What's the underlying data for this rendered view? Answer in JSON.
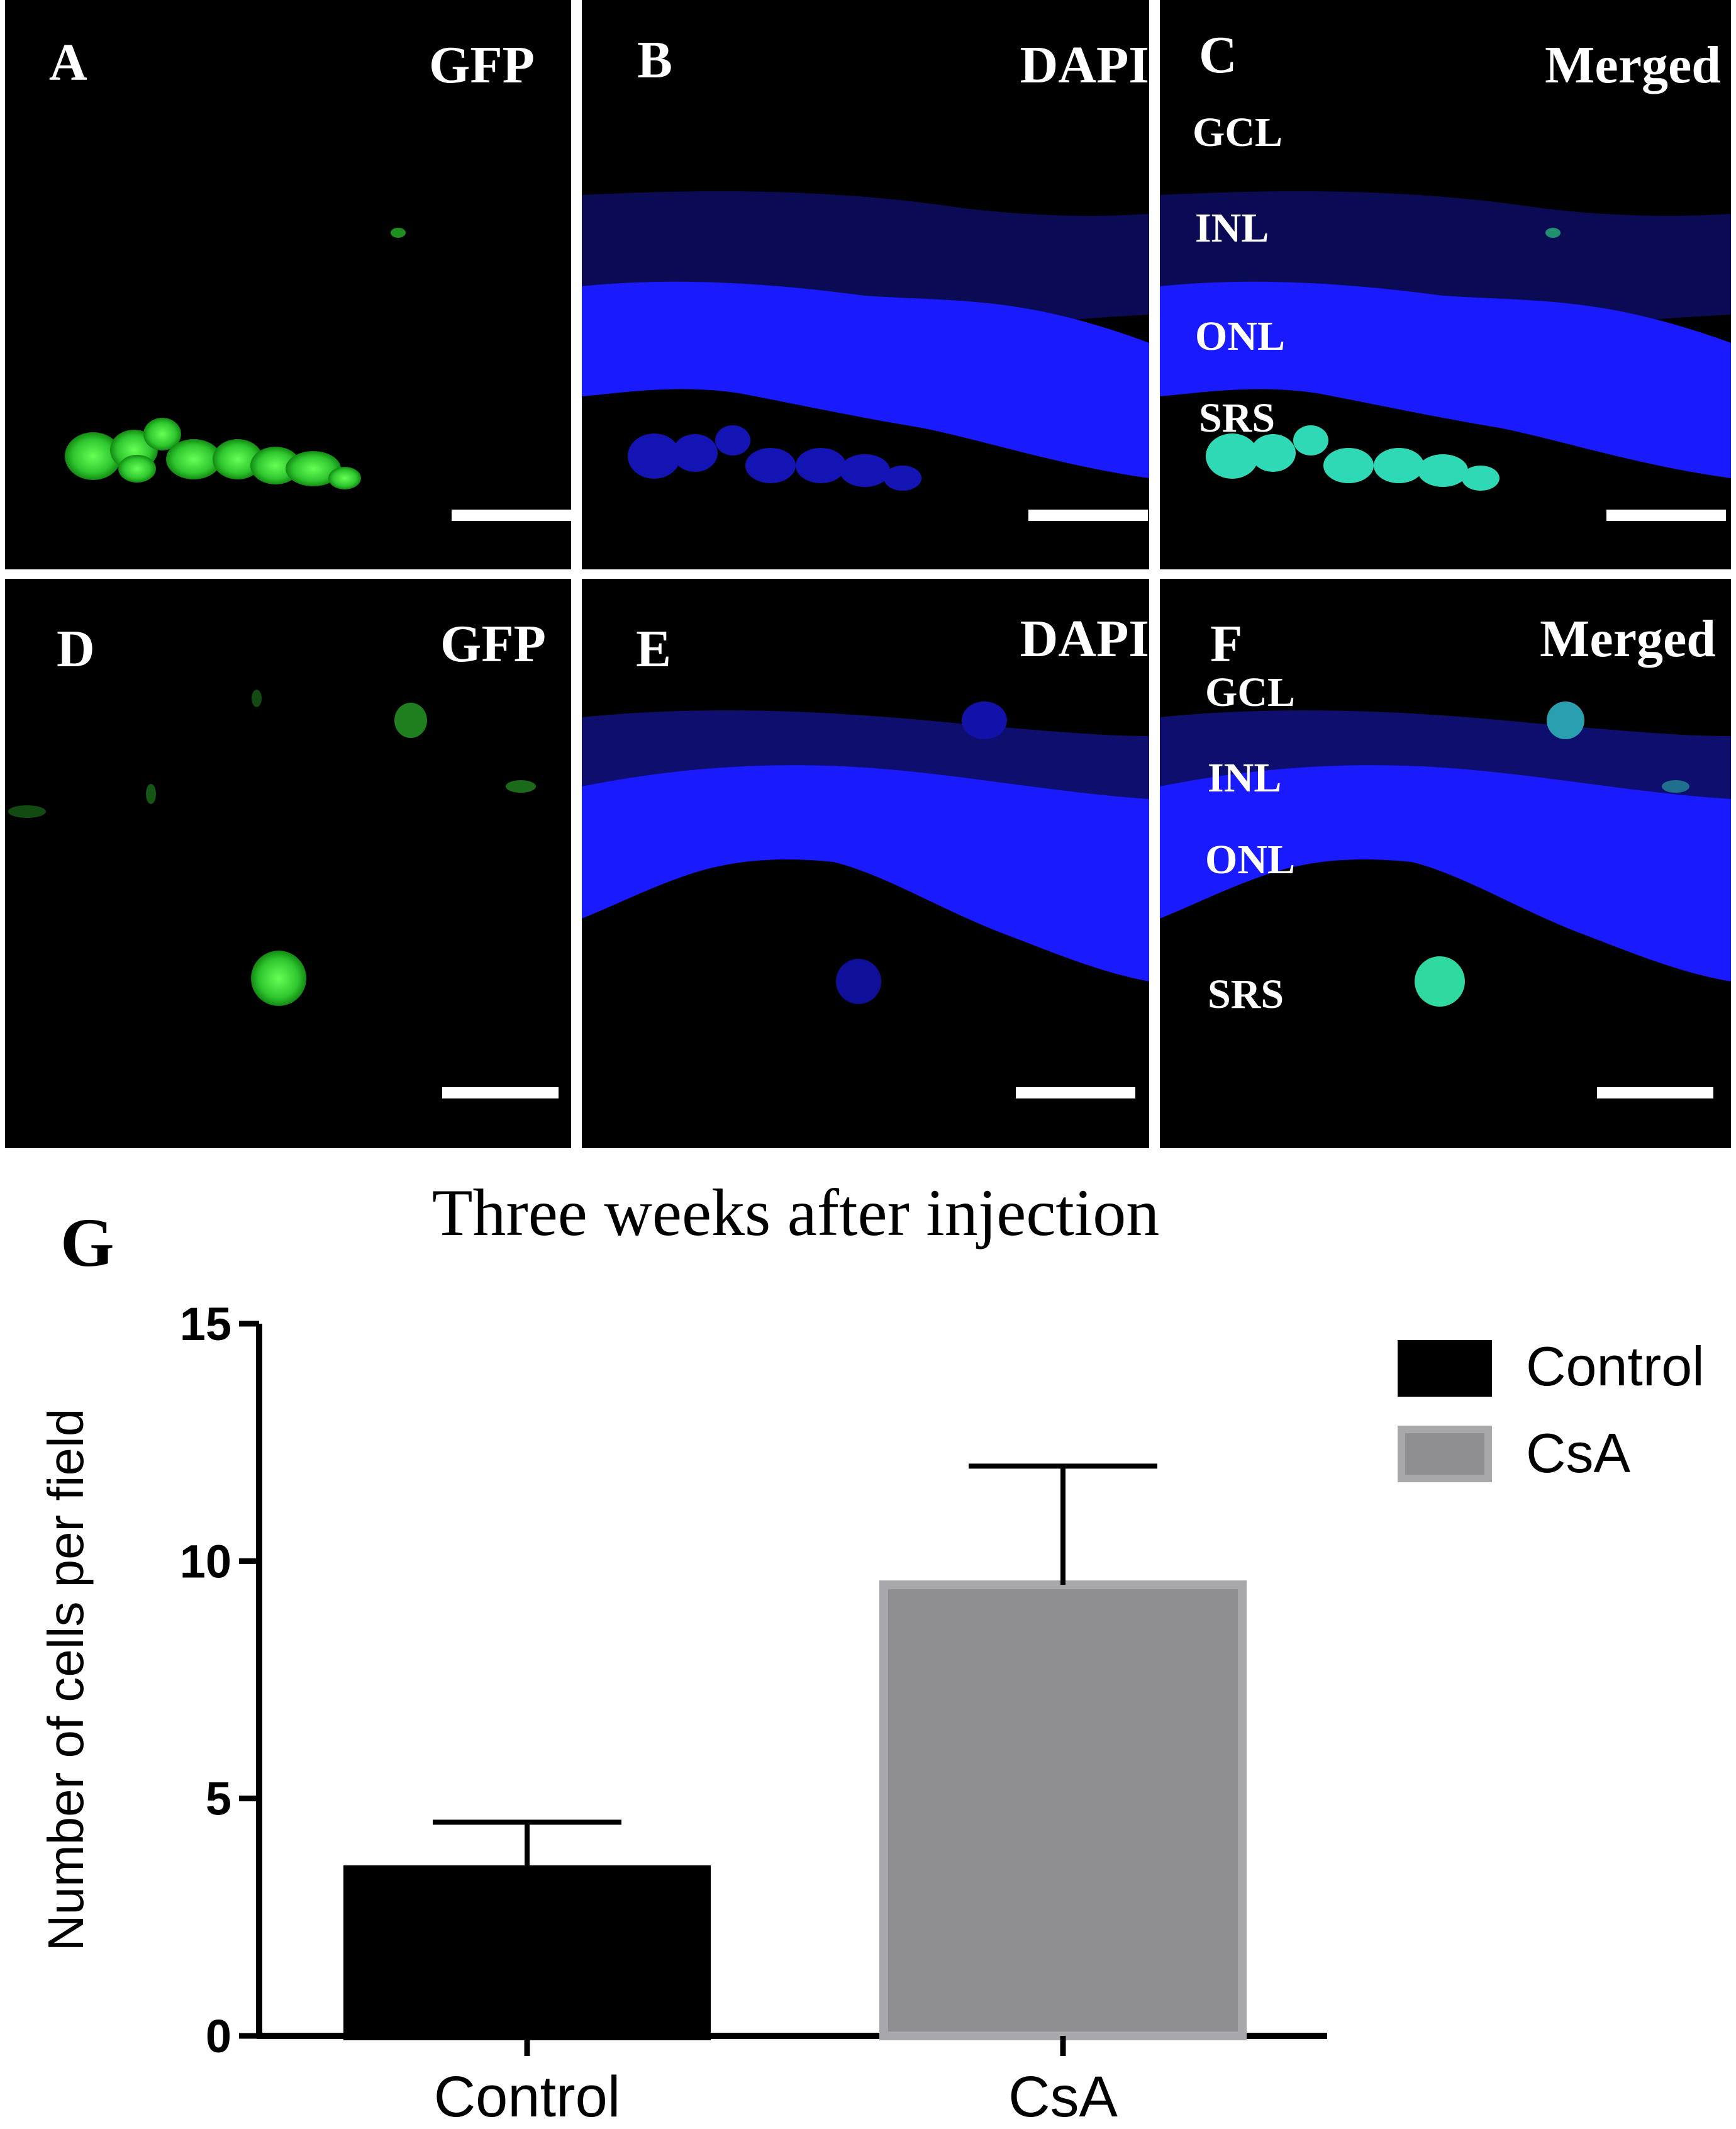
{
  "panels": [
    {
      "letter": "A",
      "stain": "GFP",
      "layers": []
    },
    {
      "letter": "B",
      "stain": "DAPI",
      "layers": []
    },
    {
      "letter": "C",
      "stain": "Merged",
      "layers": [
        "GCL",
        "INL",
        "ONL",
        "SRS"
      ]
    },
    {
      "letter": "D",
      "stain": "GFP",
      "layers": []
    },
    {
      "letter": "E",
      "stain": "DAPI",
      "layers": []
    },
    {
      "letter": "F",
      "stain": "Merged",
      "layers": [
        "GCL",
        "INL",
        "ONL",
        "SRS"
      ]
    }
  ],
  "colors": {
    "gfp": "#33cc33",
    "dapi": "#1a1aff",
    "merged": "#2fd9b5",
    "control_bar": "#000000",
    "csa_bar": "#8e8e93",
    "csa_edge": "#a8a8ac"
  },
  "chart_label": "G",
  "chart_data": {
    "type": "bar",
    "title": "Three weeks after injection",
    "xlabel": "",
    "ylabel": "Number of cells per field",
    "categories": [
      "Control",
      "CsA"
    ],
    "values": [
      3.5,
      9.5
    ],
    "errors": [
      1.0,
      2.5
    ],
    "ylim": [
      0,
      15
    ],
    "yticks": [
      0,
      5,
      10,
      15
    ],
    "ytick_labels": [
      "0",
      "5",
      "10",
      "15"
    ],
    "legend": {
      "entries": [
        "Control",
        "CsA"
      ],
      "placement": "top-right"
    },
    "grid": false
  }
}
